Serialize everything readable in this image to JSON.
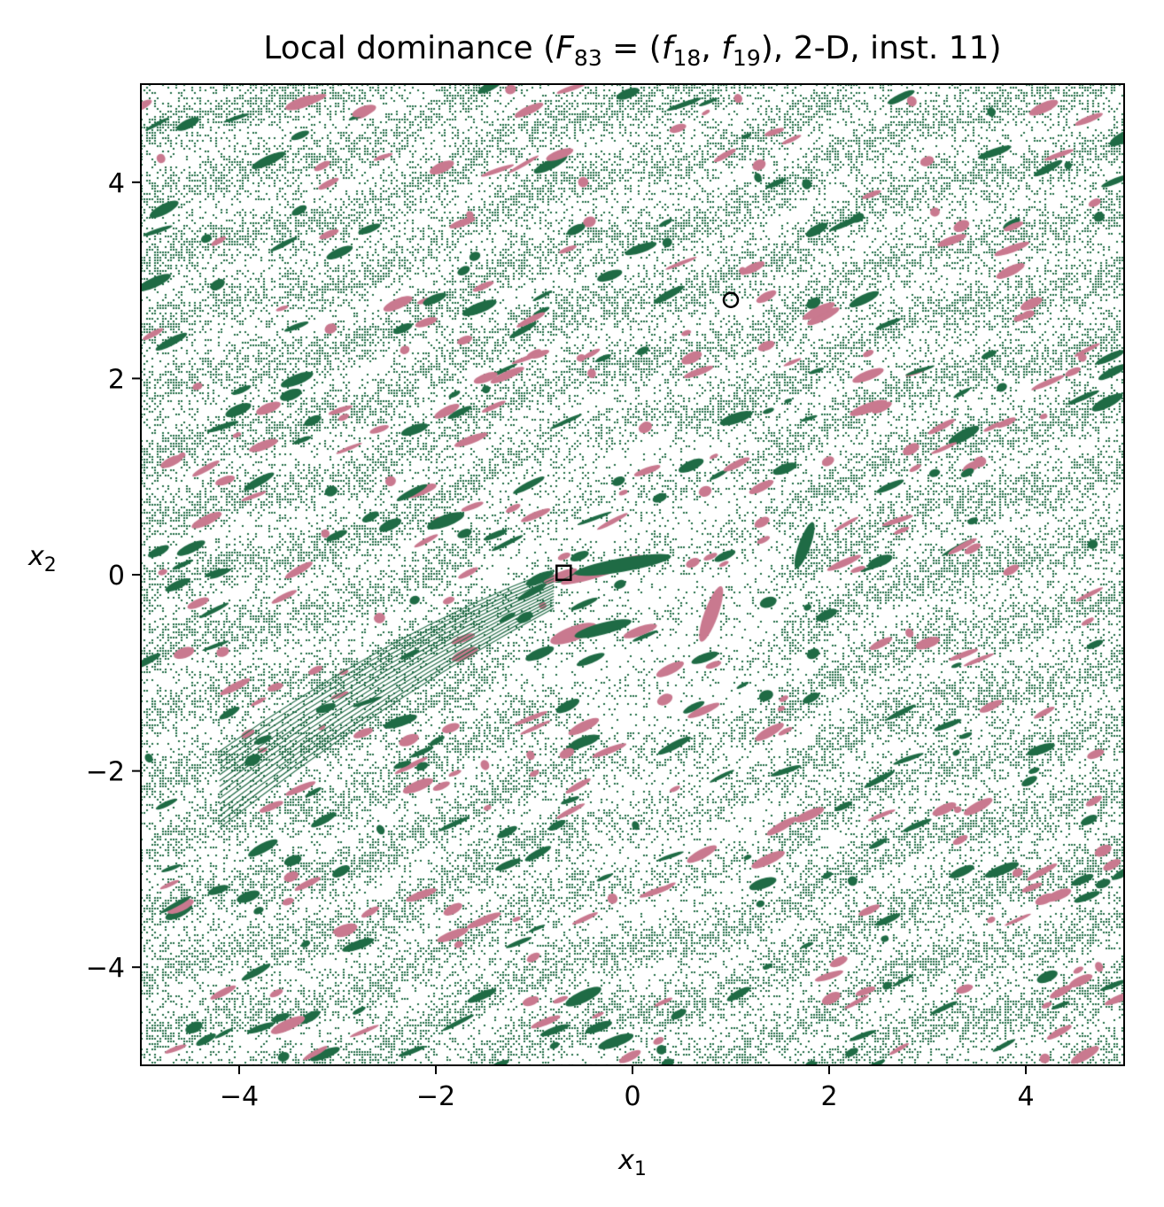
{
  "chart_data": {
    "type": "heatmap",
    "title_parts": {
      "pre": "Local dominance (",
      "F": "F",
      "F_sub": "83",
      "eq_open": " = (",
      "f1": "f",
      "f1_sub": "18",
      "comma": ", ",
      "f2": "f",
      "f2_sub": "19",
      "post": "), 2-D, inst. 11)"
    },
    "xlabel": {
      "base": "x",
      "sub": "1"
    },
    "ylabel": {
      "base": "x",
      "sub": "2"
    },
    "xlim": [
      -5,
      5
    ],
    "ylim": [
      -5,
      5
    ],
    "xticks": [
      -4,
      -2,
      0,
      2,
      4
    ],
    "yticks": [
      -4,
      -2,
      0,
      2,
      4
    ],
    "xtick_labels": [
      "−4",
      "−2",
      "0",
      "2",
      "4"
    ],
    "ytick_labels": [
      "−4",
      "−2",
      "0",
      "2",
      "4"
    ],
    "colors": {
      "background": "#ffffff",
      "dominated_green": "#1f6b45",
      "basin_pink": "#c9798f"
    },
    "markers": [
      {
        "name": "optimum-circle",
        "shape": "circle",
        "x": 1.0,
        "y": 2.8
      },
      {
        "name": "optimum-square",
        "shape": "square",
        "x": -0.7,
        "y": 0.02
      }
    ],
    "features": [
      {
        "kind": "pink-blob",
        "x": -0.3,
        "y": 0.05,
        "len": 0.9,
        "thk": 0.12,
        "angle": 18
      },
      {
        "kind": "green-blob",
        "x": -0.1,
        "y": 0.1,
        "len": 1.0,
        "thk": 0.14,
        "angle": 10
      },
      {
        "kind": "pink-blob",
        "x": 0.8,
        "y": -0.4,
        "len": 0.6,
        "thk": 0.14,
        "angle": 70
      },
      {
        "kind": "green-blob",
        "x": 1.75,
        "y": 0.3,
        "len": 0.5,
        "thk": 0.12,
        "angle": 70
      },
      {
        "kind": "pink-blob",
        "x": -0.6,
        "y": -0.6,
        "len": 0.5,
        "thk": 0.15,
        "angle": 20
      },
      {
        "kind": "green-blob",
        "x": -0.3,
        "y": -0.55,
        "len": 0.6,
        "thk": 0.12,
        "angle": 15
      },
      {
        "kind": "green-blob",
        "x": -0.5,
        "y": -4.3,
        "len": 0.4,
        "thk": 0.12,
        "angle": 25
      },
      {
        "kind": "green-blob",
        "x": -1.9,
        "y": 0.55,
        "len": 0.4,
        "thk": 0.12,
        "angle": 20
      },
      {
        "kind": "pink-blob",
        "x": 2.4,
        "y": 1.7,
        "len": 0.4,
        "thk": 0.1,
        "angle": 20
      }
    ]
  }
}
